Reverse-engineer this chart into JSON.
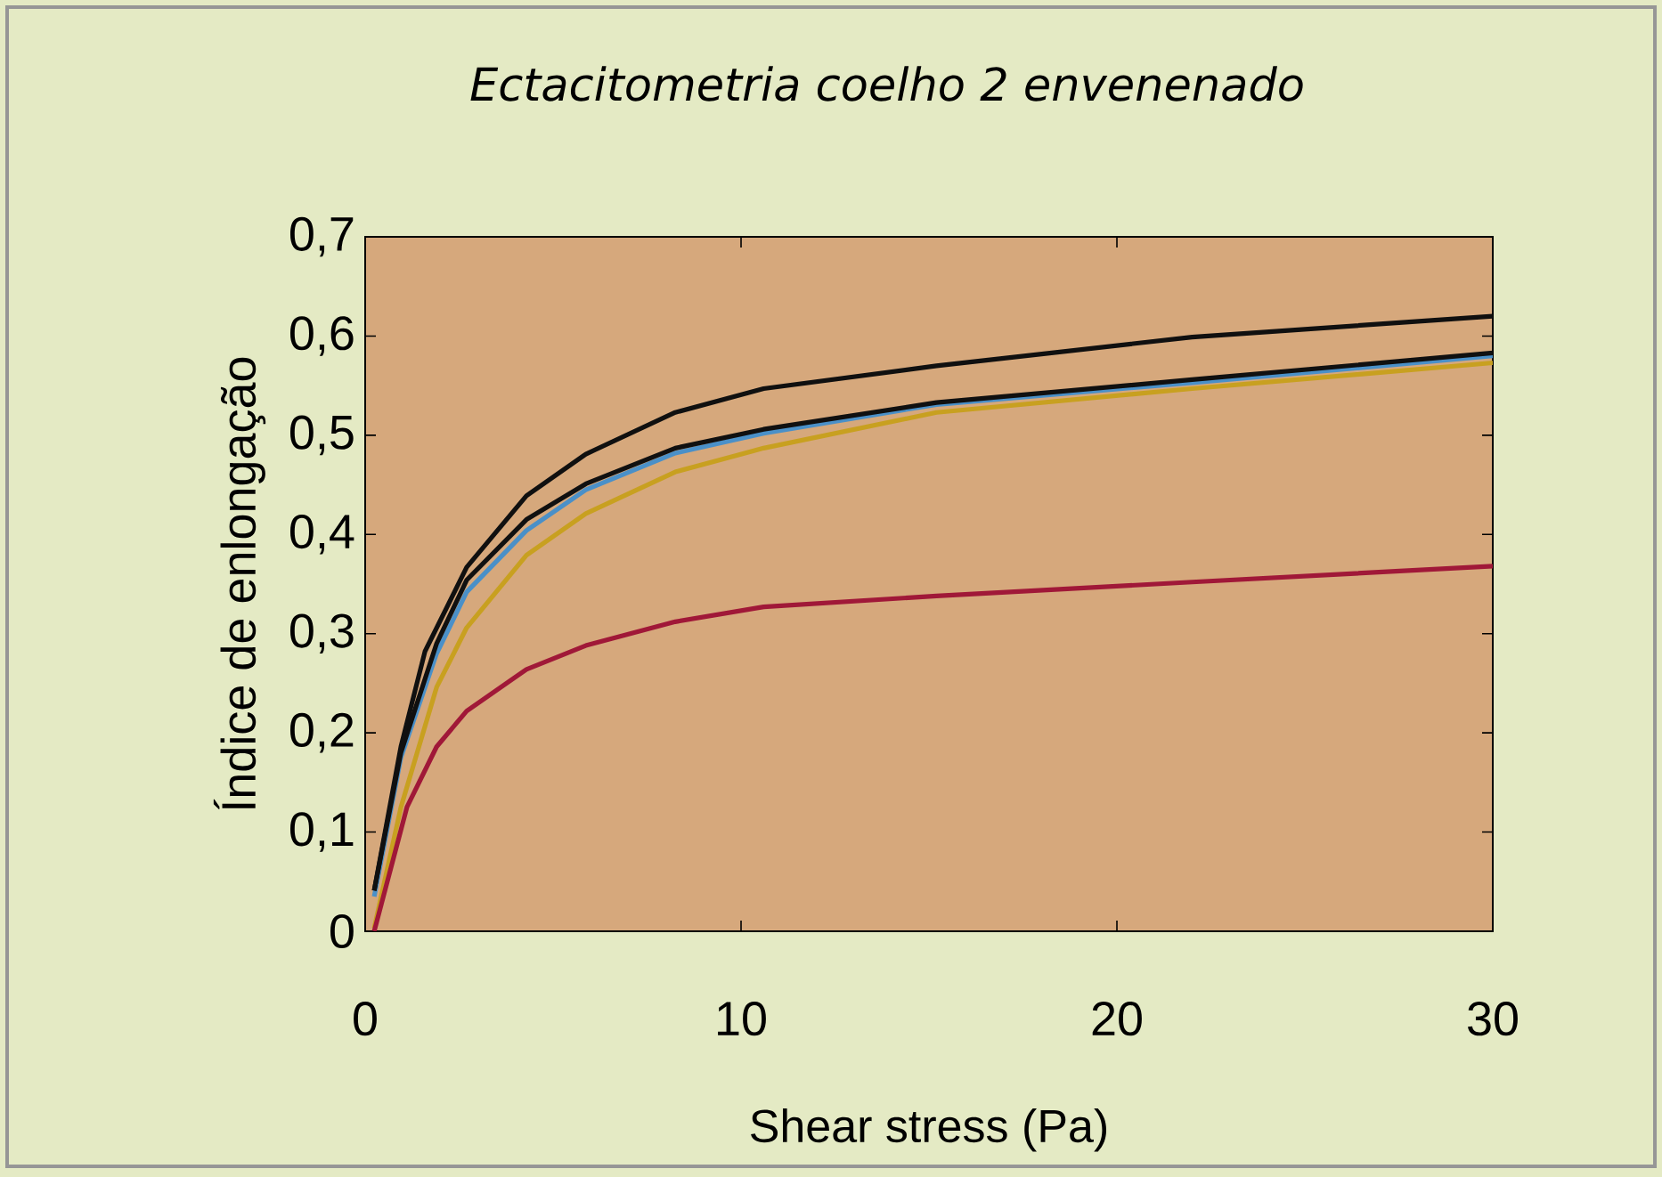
{
  "chart_data": {
    "type": "line",
    "title": "Ectacitometria coelho 2 envenenado",
    "xlabel": "Shear stress (Pa)",
    "ylabel": "Índice de enlongação",
    "xlim": [
      0,
      30
    ],
    "xticks": [
      0,
      10,
      20,
      30
    ],
    "ylim": [
      0,
      0.7
    ],
    "yticks": [
      {
        "value": 0,
        "label": "0"
      },
      {
        "value": 0.1,
        "label": "0,1"
      },
      {
        "value": 0.2,
        "label": "0,2"
      },
      {
        "value": 0.3,
        "label": "0,3"
      },
      {
        "value": 0.4,
        "label": "0,4"
      },
      {
        "value": 0.5,
        "label": "0,5"
      },
      {
        "value": 0.6,
        "label": "0,6"
      },
      {
        "value": 0.7,
        "label": "0,7"
      }
    ],
    "grid": false,
    "marker": "none",
    "line_style": "solid",
    "series": [
      {
        "color": "#c8a020",
        "x": [
          0.24,
          0.95,
          1.9,
          2.7,
          4.29,
          5.87,
          8.25,
          10.6,
          15.2,
          22,
          30
        ],
        "values": [
          0.003,
          0.125,
          0.246,
          0.306,
          0.379,
          0.421,
          0.463,
          0.487,
          0.523,
          0.547,
          0.573
        ]
      },
      {
        "color": "#4a90c8",
        "x": [
          0.24,
          0.95,
          1.9,
          2.7,
          4.29,
          5.87,
          8.25,
          10.6,
          15.2,
          22,
          30
        ],
        "values": [
          0.035,
          0.175,
          0.28,
          0.342,
          0.404,
          0.445,
          0.482,
          0.502,
          0.531,
          0.553,
          0.58
        ]
      },
      {
        "color": "#a01838",
        "x": [
          0.24,
          1.11,
          1.9,
          2.7,
          4.29,
          5.87,
          8.25,
          10.6,
          15.2,
          22,
          30
        ],
        "values": [
          0.0,
          0.125,
          0.186,
          0.222,
          0.264,
          0.288,
          0.312,
          0.327,
          0.338,
          0.352,
          0.368
        ]
      },
      {
        "color": "#101010",
        "x": [
          0.24,
          0.95,
          1.9,
          2.7,
          4.29,
          5.87,
          8.25,
          10.6,
          15.2,
          22,
          30
        ],
        "values": [
          0.041,
          0.18,
          0.29,
          0.354,
          0.415,
          0.451,
          0.487,
          0.506,
          0.533,
          0.556,
          0.583
        ]
      },
      {
        "color": "#101010",
        "x": [
          0.24,
          0.95,
          1.59,
          2.7,
          4.29,
          5.87,
          8.25,
          10.6,
          15.2,
          22,
          30
        ],
        "values": [
          0.041,
          0.186,
          0.282,
          0.367,
          0.439,
          0.481,
          0.523,
          0.547,
          0.57,
          0.599,
          0.62
        ]
      }
    ]
  }
}
